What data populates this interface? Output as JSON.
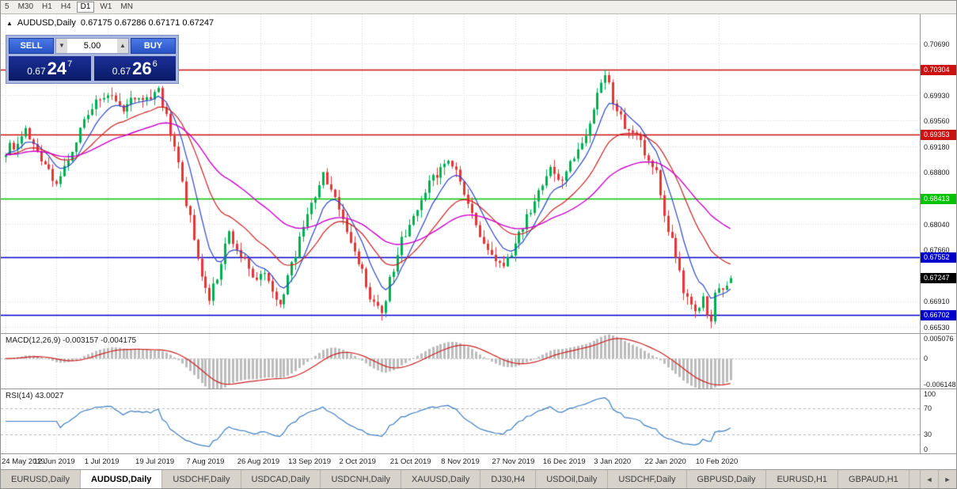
{
  "toolbar": {
    "timeframes": [
      "5",
      "M30",
      "H1",
      "H4",
      "D1",
      "W1",
      "MN"
    ],
    "selected": "D1"
  },
  "symbol_header": {
    "marker": "▲",
    "symbol": "AUDUSD,Daily",
    "ohlc": "0.67175 0.67286 0.67171 0.67247"
  },
  "trade_panel": {
    "sell_label": "SELL",
    "buy_label": "BUY",
    "volume": "5.00",
    "spinner_down": "▼",
    "spinner_up": "▲",
    "bid": {
      "prefix": "0.67",
      "big": "24",
      "sup": "7"
    },
    "ask": {
      "prefix": "0.67",
      "big": "26",
      "sup": "6"
    }
  },
  "chart_data": {
    "type": "candlestick",
    "symbol": "AUDUSD",
    "timeframe": "Daily",
    "last_ohlc": {
      "open": 0.67175,
      "high": 0.67286,
      "low": 0.67171,
      "close": 0.67247
    },
    "price_max": 0.7112,
    "price_min": 0.6644,
    "bar_count": 186,
    "first_bar_x": 6,
    "bar_step": 4.95,
    "up_color": "#00b050",
    "down_color": "#e63535",
    "ma_colors": {
      "fast": "#2b48c8",
      "medium": "#cc2020",
      "slow": "#cc00cc"
    },
    "ma_periods": {
      "fast": 8,
      "medium": 21,
      "slow": 48
    },
    "y_ticks": [
      "0.70690",
      "0.69930",
      "0.69560",
      "0.69180",
      "0.68800",
      "0.68040",
      "0.67660",
      "0.66910",
      "0.66530"
    ],
    "levels": [
      {
        "price": 0.70304,
        "label": "0.70304",
        "color": "#cc1111"
      },
      {
        "price": 0.69353,
        "label": "0.69353",
        "color": "#cc1111"
      },
      {
        "price": 0.68413,
        "label": "0.68413",
        "color": "#00c400"
      },
      {
        "price": 0.67552,
        "label": "0.67552",
        "color": "#0000cc"
      },
      {
        "price": 0.66702,
        "label": "0.66702",
        "color": "#0000cc"
      }
    ],
    "current_price": {
      "price": 0.67247,
      "label": "0.67247",
      "color": "#000000"
    },
    "date_ticks": [
      "24 May 2019",
      "12 Jun 2019",
      "1 Jul 2019",
      "19 Jul 2019",
      "7 Aug 2019",
      "26 Aug 2019",
      "13 Sep 2019",
      "2 Oct 2019",
      "21 Oct 2019",
      "8 Nov 2019",
      "27 Nov 2019",
      "16 Dec 2019",
      "3 Jan 2020",
      "22 Jan 2020",
      "10 Feb 2020"
    ],
    "date_tick_step": 13,
    "close_anchors": [
      [
        0,
        0.691
      ],
      [
        5,
        0.6938
      ],
      [
        10,
        0.689
      ],
      [
        13,
        0.6856
      ],
      [
        17,
        0.6915
      ],
      [
        22,
        0.6975
      ],
      [
        26,
        0.6996
      ],
      [
        30,
        0.6974
      ],
      [
        34,
        0.699
      ],
      [
        39,
        0.6996
      ],
      [
        41,
        0.6958
      ],
      [
        44,
        0.689
      ],
      [
        47,
        0.681
      ],
      [
        49,
        0.6755
      ],
      [
        52,
        0.6692
      ],
      [
        55,
        0.6748
      ],
      [
        57,
        0.679
      ],
      [
        60,
        0.6758
      ],
      [
        63,
        0.6726
      ],
      [
        66,
        0.6732
      ],
      [
        68,
        0.6702
      ],
      [
        70,
        0.669
      ],
      [
        73,
        0.6742
      ],
      [
        76,
        0.68
      ],
      [
        79,
        0.685
      ],
      [
        81,
        0.6876
      ],
      [
        84,
        0.684
      ],
      [
        87,
        0.68
      ],
      [
        90,
        0.675
      ],
      [
        93,
        0.67
      ],
      [
        96,
        0.6668
      ],
      [
        98,
        0.6722
      ],
      [
        101,
        0.678
      ],
      [
        104,
        0.682
      ],
      [
        107,
        0.6852
      ],
      [
        110,
        0.688
      ],
      [
        113,
        0.6896
      ],
      [
        116,
        0.687
      ],
      [
        119,
        0.6822
      ],
      [
        121,
        0.6792
      ],
      [
        124,
        0.6762
      ],
      [
        127,
        0.6746
      ],
      [
        130,
        0.6772
      ],
      [
        133,
        0.6812
      ],
      [
        136,
        0.6846
      ],
      [
        139,
        0.688
      ],
      [
        142,
        0.6866
      ],
      [
        145,
        0.6906
      ],
      [
        148,
        0.694
      ],
      [
        151,
        0.6992
      ],
      [
        153,
        0.7026
      ],
      [
        155,
        0.6986
      ],
      [
        158,
        0.6946
      ],
      [
        161,
        0.6932
      ],
      [
        163,
        0.6912
      ],
      [
        166,
        0.688
      ],
      [
        168,
        0.682
      ],
      [
        171,
        0.676
      ],
      [
        173,
        0.6706
      ],
      [
        176,
        0.6672
      ],
      [
        178,
        0.6692
      ],
      [
        180,
        0.6662
      ],
      [
        181,
        0.6702
      ],
      [
        183,
        0.6712
      ],
      [
        185,
        0.67247
      ]
    ]
  },
  "macd_panel": {
    "label": "MACD(12,26,9) -0.003157 -0.004175",
    "values": "-0.003157 -0.004175",
    "axis": [
      "0.005076",
      "0",
      "-0.006148"
    ],
    "range": {
      "max": 0.005076,
      "min": -0.006148
    },
    "histogram_color": "#bcbcbc",
    "signal_color": "#cc2020"
  },
  "rsi_panel": {
    "label": "RSI(14) 43.0027",
    "value": 43.0027,
    "axis": [
      "100",
      "70",
      "30",
      "0"
    ],
    "levels": [
      70,
      30
    ],
    "line_color": "#3d7ec2"
  },
  "tabs": {
    "items": [
      "EURUSD,Daily",
      "AUDUSD,Daily",
      "USDCHF,Daily",
      "USDCAD,Daily",
      "USDCNH,Daily",
      "XAUUSD,Daily",
      "DJ30,H4",
      "USDOil,Daily",
      "USDCHF,Daily",
      "GBPUSD,Daily",
      "EURUSD,H1",
      "GBPAUD,H1"
    ],
    "active": "AUDUSD,Daily",
    "scroll_left": "◄",
    "scroll_right": "►"
  }
}
